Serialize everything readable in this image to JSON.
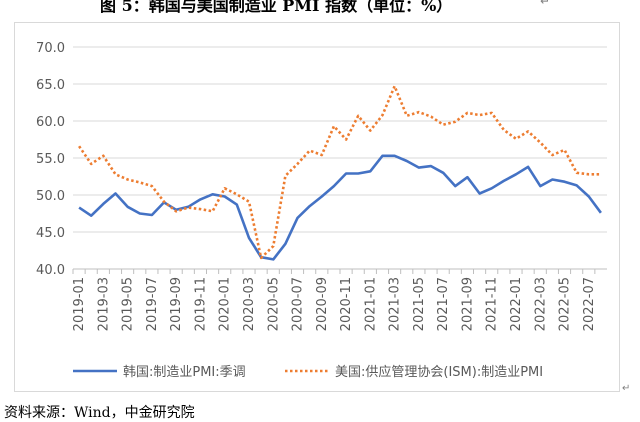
{
  "heading": {
    "text": "图 5：韩国与美国制造业 PMI 指数（单位：%）",
    "return_mark": "↵"
  },
  "source": {
    "text": "资料来源：Wind，中金研究院"
  },
  "corner_mark": "↵",
  "chart_data": {
    "type": "line",
    "title": "",
    "xlabel": "",
    "ylabel": "",
    "ylim": [
      40,
      70
    ],
    "yticks": [
      "40.0",
      "45.0",
      "50.0",
      "55.0",
      "60.0",
      "65.0",
      "70.0"
    ],
    "grid": true,
    "legend_position": "bottom",
    "x": [
      "2019-01",
      "2019-02",
      "2019-03",
      "2019-04",
      "2019-05",
      "2019-06",
      "2019-07",
      "2019-08",
      "2019-09",
      "2019-10",
      "2019-11",
      "2019-12",
      "2020-01",
      "2020-02",
      "2020-03",
      "2020-04",
      "2020-05",
      "2020-06",
      "2020-07",
      "2020-08",
      "2020-09",
      "2020-10",
      "2020-11",
      "2020-12",
      "2021-01",
      "2021-02",
      "2021-03",
      "2021-04",
      "2021-05",
      "2021-06",
      "2021-07",
      "2021-08",
      "2021-09",
      "2021-10",
      "2021-11",
      "2021-12",
      "2022-01",
      "2022-02",
      "2022-03",
      "2022-04",
      "2022-05",
      "2022-06",
      "2022-07",
      "2022-08"
    ],
    "x_tick_labels": [
      "2019-01",
      "2019-03",
      "2019-05",
      "2019-07",
      "2019-09",
      "2019-11",
      "2020-01",
      "2020-03",
      "2020-05",
      "2020-07",
      "2020-09",
      "2020-11",
      "2021-01",
      "2021-03",
      "2021-05",
      "2021-07",
      "2021-09",
      "2021-11",
      "2022-01",
      "2022-03",
      "2022-05",
      "2022-07"
    ],
    "series": [
      {
        "name": "韩国:制造业PMI:季调",
        "color": "#4472c4",
        "style": "solid",
        "values": [
          48.3,
          47.2,
          48.8,
          50.2,
          48.4,
          47.5,
          47.3,
          49.0,
          48.0,
          48.4,
          49.4,
          50.1,
          49.8,
          48.7,
          44.2,
          41.6,
          41.3,
          43.4,
          46.9,
          48.5,
          49.8,
          51.2,
          52.9,
          52.9,
          53.2,
          55.3,
          55.3,
          54.6,
          53.7,
          53.9,
          53.0,
          51.2,
          52.4,
          50.2,
          50.9,
          51.9,
          52.8,
          53.8,
          51.2,
          52.1,
          51.8,
          51.3,
          49.8,
          47.6
        ]
      },
      {
        "name": "美国:供应管理协会(ISM):制造业PMI",
        "color": "#ed7d31",
        "style": "dotted",
        "values": [
          56.6,
          54.2,
          55.3,
          52.8,
          52.1,
          51.7,
          51.2,
          49.1,
          47.8,
          48.3,
          48.1,
          47.8,
          50.9,
          50.1,
          49.1,
          41.5,
          43.1,
          52.6,
          54.2,
          56.0,
          55.4,
          59.3,
          57.5,
          60.7,
          58.7,
          60.8,
          64.7,
          60.7,
          61.2,
          60.6,
          59.5,
          59.9,
          61.1,
          60.8,
          61.1,
          58.8,
          57.6,
          58.6,
          57.1,
          55.4,
          56.1,
          53.0,
          52.8,
          52.8
        ]
      }
    ]
  }
}
